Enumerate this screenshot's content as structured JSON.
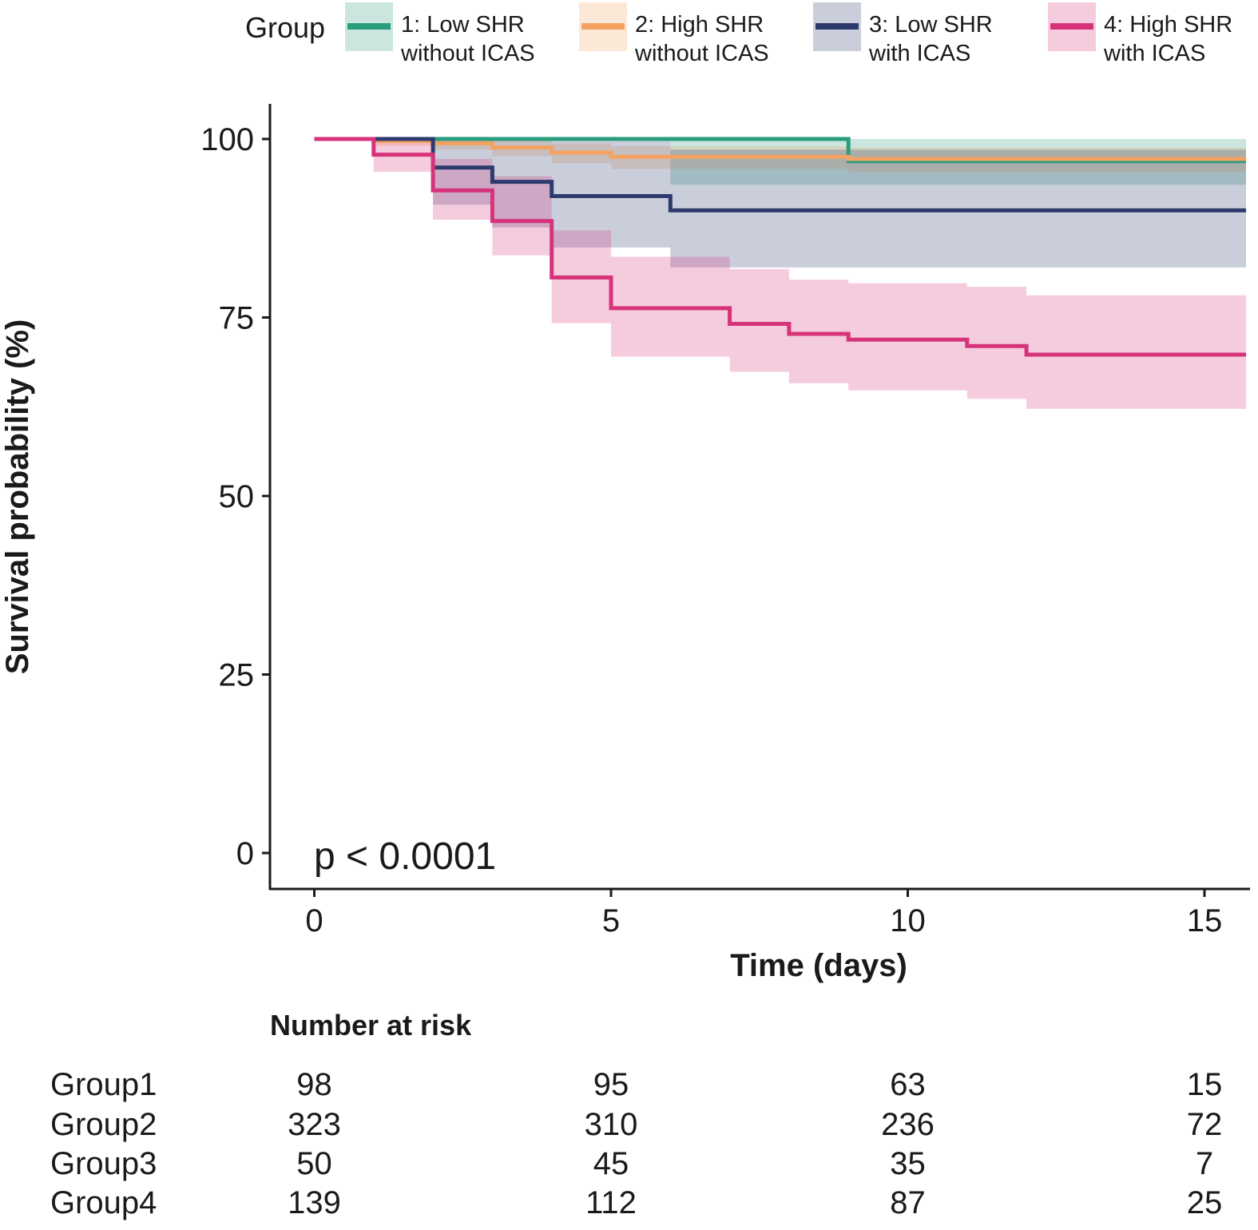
{
  "chart_data": {
    "type": "line",
    "subtype": "kaplan-meier",
    "xlabel": "Time (days)",
    "ylabel": "Survival probability (%)",
    "xlim": [
      -1.5,
      15.7
    ],
    "ylim": [
      -5,
      105
    ],
    "x_ticks": [
      0,
      5,
      10,
      15
    ],
    "y_ticks": [
      0,
      25,
      50,
      75,
      100
    ],
    "grid": false,
    "annotation": "p < 0.0001",
    "legend": {
      "title": "Group",
      "position": "top"
    },
    "series": [
      {
        "name": "1: Low SHR without ICAS",
        "legend_lines": [
          "1: Low SHR",
          "without ICAS"
        ],
        "color": "#2a9d7f",
        "steps": [
          [
            0,
            100
          ],
          [
            9,
            96.9
          ],
          [
            15.7,
            96.9
          ]
        ],
        "ci": [
          [
            0,
            100,
            100
          ],
          [
            6,
            100,
            93.6
          ],
          [
            15.7,
            100,
            93.6
          ]
        ]
      },
      {
        "name": "2: High SHR without ICAS",
        "legend_lines": [
          "2: High SHR",
          "without ICAS"
        ],
        "color": "#f4a261",
        "steps": [
          [
            0,
            100
          ],
          [
            1,
            99.7
          ],
          [
            2,
            99.4
          ],
          [
            3,
            98.8
          ],
          [
            4,
            98.1
          ],
          [
            5,
            97.5
          ],
          [
            9,
            97.2
          ],
          [
            15.7,
            97.2
          ]
        ],
        "ci": [
          [
            0,
            100,
            100
          ],
          [
            1,
            100,
            99.0
          ],
          [
            2,
            100,
            98.5
          ],
          [
            3,
            99.8,
            97.6
          ],
          [
            4,
            99.4,
            96.6
          ],
          [
            5,
            99.0,
            95.8
          ],
          [
            9,
            98.8,
            95.3
          ],
          [
            15.7,
            98.8,
            95.3
          ]
        ]
      },
      {
        "name": "3: Low SHR with ICAS",
        "legend_lines": [
          "3: Low SHR",
          "with ICAS"
        ],
        "color": "#2d3a6e",
        "steps": [
          [
            0,
            100
          ],
          [
            2,
            96
          ],
          [
            3,
            94
          ],
          [
            4,
            92
          ],
          [
            6,
            90
          ],
          [
            15.7,
            90
          ]
        ],
        "ci": [
          [
            0,
            100,
            100
          ],
          [
            2,
            100,
            90.8
          ],
          [
            3,
            100,
            87.6
          ],
          [
            4,
            99.7,
            84.8
          ],
          [
            6,
            98.5,
            82.0
          ],
          [
            15.7,
            98.5,
            82.0
          ]
        ]
      },
      {
        "name": "4: High SHR with ICAS",
        "legend_lines": [
          "4: High SHR",
          "with ICAS"
        ],
        "color": "#d6337a",
        "steps": [
          [
            0,
            100
          ],
          [
            1,
            97.8
          ],
          [
            2,
            92.8
          ],
          [
            3,
            88.5
          ],
          [
            4,
            80.6
          ],
          [
            5,
            76.3
          ],
          [
            7,
            74.1
          ],
          [
            8,
            72.7
          ],
          [
            9,
            71.9
          ],
          [
            11,
            71.0
          ],
          [
            12,
            69.8
          ],
          [
            15.7,
            69.8
          ]
        ],
        "ci": [
          [
            0,
            100,
            100
          ],
          [
            1,
            100,
            95.4
          ],
          [
            2,
            97.2,
            88.7
          ],
          [
            3,
            94.8,
            83.7
          ],
          [
            4,
            87.2,
            74.2
          ],
          [
            5,
            83.5,
            69.5
          ],
          [
            7,
            81.8,
            67.4
          ],
          [
            8,
            80.3,
            65.8
          ],
          [
            9,
            79.8,
            64.8
          ],
          [
            11,
            79.3,
            63.6
          ],
          [
            12,
            78.1,
            62.2
          ],
          [
            15.7,
            78.1,
            62.2
          ]
        ]
      }
    ],
    "risk_table": {
      "title": "Number at risk",
      "times": [
        0,
        5,
        10,
        15
      ],
      "rows": [
        {
          "label": "Group1",
          "values": [
            "98",
            "95",
            "63",
            "15"
          ]
        },
        {
          "label": "Group2",
          "values": [
            "323",
            "310",
            "236",
            "72"
          ]
        },
        {
          "label": "Group3",
          "values": [
            "50",
            "45",
            "35",
            "7"
          ]
        },
        {
          "label": "Group4",
          "values": [
            "139",
            "112",
            "87",
            "25"
          ]
        }
      ]
    }
  }
}
